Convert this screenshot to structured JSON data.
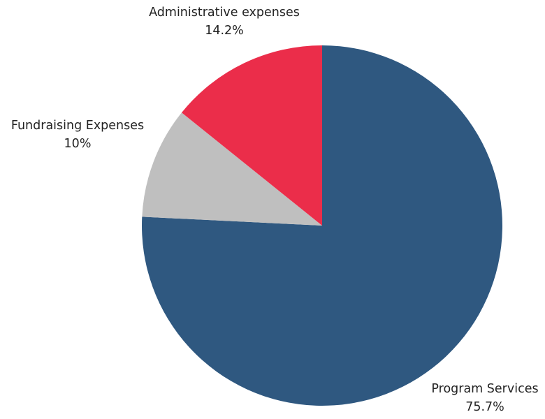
{
  "chart_data": {
    "type": "pie",
    "start_angle": "12 o'clock",
    "direction": "clockwise",
    "slices": [
      {
        "name": "Program Services",
        "value": 75.7,
        "label": "Program Services",
        "value_label": "75.7%",
        "color": "#2F5880"
      },
      {
        "name": "Fundraising Expenses",
        "value": 10.0,
        "label": "Fundraising Expenses",
        "value_label": "10%",
        "color": "#BFBFBF"
      },
      {
        "name": "Administrative expenses",
        "value": 14.2,
        "label": "Administrative expenses",
        "value_label": "14.2%",
        "color": "#EB2D4A"
      }
    ]
  }
}
